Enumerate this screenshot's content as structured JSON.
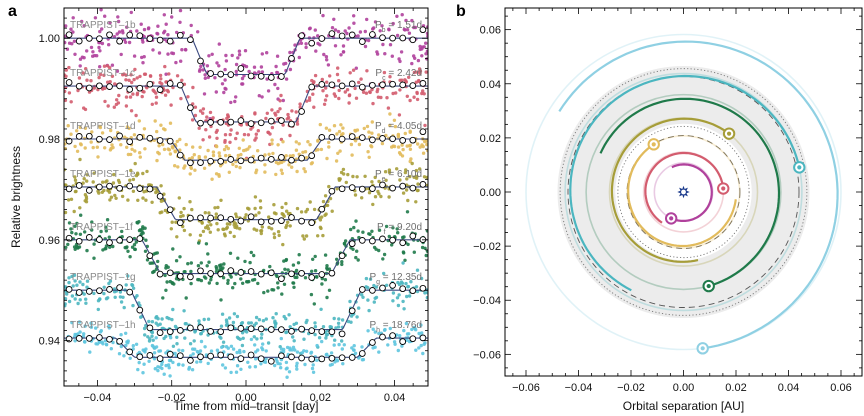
{
  "chart_data": [
    {
      "panel": "a",
      "type": "scatter",
      "xlabel": "Time from mid–transit [day]",
      "ylabel": "Relative brightness",
      "xlim": [
        -0.049,
        0.049
      ],
      "ylim": [
        0.931,
        1.006
      ],
      "xticks": [
        -0.04,
        -0.02,
        0.0,
        0.02,
        0.04
      ],
      "xtick_labels": [
        "−0.04",
        "−0.02",
        "0.00",
        "0.02",
        "0.04"
      ],
      "yticks": [
        0.94,
        0.96,
        0.98,
        1.0
      ],
      "ytick_labels": [
        "0.94",
        "0.96",
        "0.98",
        "1.00"
      ],
      "series": [
        {
          "name": "TRAPPIST–1b",
          "period_sub": "b",
          "period": "= 1.51d",
          "color": "#b0419c",
          "baseline": 1.0,
          "depth": 0.0072,
          "half_width": 0.0125,
          "ingress": 0.002,
          "noise": 0.0026
        },
        {
          "name": "TRAPPIST–1c",
          "period_sub": "c",
          "period": "= 2.42d",
          "color": "#d35c6e",
          "baseline": 0.9905,
          "depth": 0.0071,
          "half_width": 0.0155,
          "ingress": 0.002,
          "noise": 0.0022
        },
        {
          "name": "TRAPPIST–1d",
          "period_sub": "d",
          "period": "= 4.05d",
          "color": "#e2bb5c",
          "baseline": 0.98,
          "depth": 0.0042,
          "half_width": 0.0185,
          "ingress": 0.002,
          "noise": 0.0019
        },
        {
          "name": "TRAPPIST–1e",
          "period_sub": "e",
          "period": "= 6.10d",
          "color": "#a69d38",
          "baseline": 0.9705,
          "depth": 0.0065,
          "half_width": 0.0215,
          "ingress": 0.0025,
          "noise": 0.0021
        },
        {
          "name": "TRAPPIST–1f",
          "period_sub": "f",
          "period": "= 9.20d",
          "color": "#1f7a4a",
          "baseline": 0.96,
          "depth": 0.0067,
          "half_width": 0.0255,
          "ingress": 0.0025,
          "noise": 0.0018
        },
        {
          "name": "TRAPPIST–1g",
          "period_sub": "g",
          "period": "= 12.35d",
          "color": "#4bb6c0",
          "baseline": 0.95,
          "depth": 0.0078,
          "half_width": 0.0285,
          "ingress": 0.0025,
          "noise": 0.0017
        },
        {
          "name": "TRAPPIST–1h",
          "period_sub": "h",
          "period": "= 18.76d",
          "color": "#5ec5df",
          "baseline": 0.9405,
          "depth": 0.0038,
          "half_width": 0.0325,
          "ingress": 0.0025,
          "noise": 0.0016
        }
      ]
    },
    {
      "panel": "b",
      "type": "scatter",
      "xlabel": "Orbital separation [AU]",
      "xlim": [
        -0.068,
        0.068
      ],
      "ylim": [
        -0.068,
        0.068
      ],
      "xticks": [
        -0.06,
        -0.04,
        -0.02,
        0.0,
        0.02,
        0.04,
        0.06
      ],
      "xtick_labels": [
        "−0.06",
        "−0.04",
        "−0.02",
        "0.00",
        "0.02",
        "0.04",
        "0.06"
      ],
      "yticks": [
        -0.06,
        -0.04,
        -0.02,
        0.0,
        0.02,
        0.04,
        0.06
      ],
      "ytick_labels": [
        "−0.06",
        "−0.04",
        "−0.02",
        "0.00",
        "0.02",
        "0.04",
        "0.06"
      ],
      "star": {
        "x": 0.0,
        "y": 0.0,
        "color": "#1b3a8c"
      },
      "habitable_zone": {
        "inner_au": 0.026,
        "outer_au": 0.048,
        "color": "#e5e5e5"
      },
      "dashed_circles_au": [
        0.0215,
        0.044
      ],
      "dotted_circles_au": [
        0.025,
        0.047
      ],
      "orbits": [
        {
          "planet": "b",
          "a_au": 0.0111,
          "color": "#b0419c",
          "pos_deg": 245
        },
        {
          "planet": "c",
          "a_au": 0.0152,
          "color": "#d35c6e",
          "pos_deg": 5
        },
        {
          "planet": "d",
          "a_au": 0.0214,
          "color": "#e2bb5c",
          "pos_deg": 122
        },
        {
          "planet": "e",
          "a_au": 0.0282,
          "color": "#a69d38",
          "pos_deg": 52
        },
        {
          "planet": "f",
          "a_au": 0.0371,
          "color": "#1f7a4a",
          "pos_deg": 285
        },
        {
          "planet": "g",
          "a_au": 0.0451,
          "color": "#4bb6c0",
          "pos_deg": 12
        },
        {
          "planet": "h",
          "a_au": 0.06,
          "color": "#8fd0e3",
          "pos_deg": 277
        }
      ]
    }
  ],
  "panels": {
    "a": "a",
    "b": "b"
  }
}
